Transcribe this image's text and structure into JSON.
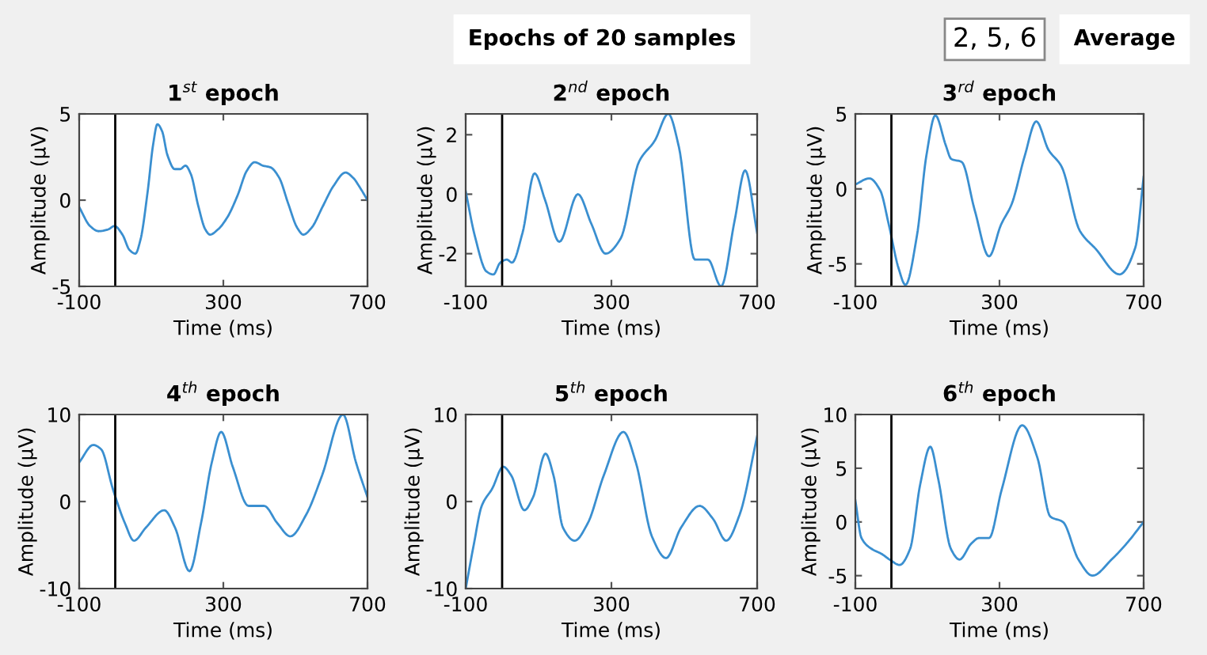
{
  "chart_data": [
    {
      "type": "line",
      "title": "1$^{st}$ epoch",
      "xlabel": "Time (ms)",
      "ylabel": "Amplitude (µV)",
      "xlim": [
        -100,
        700
      ],
      "ylim": [
        -5,
        5
      ],
      "xticks": [
        -100,
        300,
        700
      ],
      "yticks": [
        -5,
        0,
        5
      ],
      "ref_lines": [
        {
          "axis": "x",
          "value": 0,
          "color": "#000000"
        }
      ],
      "x": [
        -100,
        -70,
        -46,
        -20,
        -2,
        20,
        40,
        56,
        70,
        90,
        105,
        117,
        130,
        145,
        165,
        180,
        195,
        210,
        230,
        250,
        263,
        285,
        311,
        340,
        365,
        387,
        410,
        431,
        455,
        480,
        505,
        522,
        545,
        575,
        605,
        639,
        660,
        680,
        700
      ],
      "series": [
        {
          "color": "#3a8fd0",
          "values": [
            -0.4,
            -1.5,
            -1.8,
            -1.7,
            -1.5,
            -2.0,
            -2.9,
            -3.1,
            -2.3,
            0.5,
            3.2,
            4.4,
            4.0,
            2.6,
            1.8,
            1.8,
            2.0,
            1.5,
            -0.3,
            -1.7,
            -2.0,
            -1.7,
            -1.0,
            0.3,
            1.7,
            2.2,
            2.0,
            1.9,
            1.3,
            -0.2,
            -1.6,
            -2.0,
            -1.6,
            -0.4,
            0.8,
            1.6,
            1.3,
            0.7,
            0.0
          ]
        }
      ]
    },
    {
      "type": "line",
      "title": "2$^{nd}$ epoch",
      "xlabel": "Time (ms)",
      "ylabel": "Amplitude (µV)",
      "xlim": [
        -100,
        700
      ],
      "ylim": [
        -3.1,
        2.7
      ],
      "xticks": [
        -100,
        300,
        700
      ],
      "yticks": [
        -2,
        0,
        2
      ],
      "ref_lines": [
        {
          "axis": "x",
          "value": 0,
          "color": "#000000"
        }
      ],
      "x": [
        -100,
        -75,
        -43,
        -24,
        -5,
        13,
        27,
        56,
        89,
        118,
        157,
        208,
        245,
        284,
        325,
        376,
        419,
        456,
        485,
        529,
        565,
        601,
        638,
        667,
        700
      ],
      "series": [
        {
          "color": "#3a8fd0",
          "values": [
            0.1,
            -1.4,
            -2.6,
            -2.7,
            -2.3,
            -2.2,
            -2.3,
            -1.3,
            0.7,
            -0.2,
            -1.6,
            0.0,
            -1.0,
            -2.0,
            -1.5,
            1.1,
            1.8,
            2.7,
            1.6,
            -2.2,
            -2.2,
            -3.1,
            -0.9,
            0.8,
            -1.3
          ]
        }
      ]
    },
    {
      "type": "line",
      "title": "3$^{rd}$ epoch",
      "xlabel": "Time (ms)",
      "ylabel": "Amplitude (µV)",
      "xlim": [
        -100,
        700
      ],
      "ylim": [
        -6.5,
        5
      ],
      "xticks": [
        -100,
        300,
        700
      ],
      "yticks": [
        -5,
        0,
        5
      ],
      "ref_lines": [
        {
          "axis": "x",
          "value": 0,
          "color": "#000000"
        }
      ],
      "x": [
        -100,
        -61,
        -31,
        -7,
        20,
        39,
        71,
        97,
        122,
        151,
        166,
        195,
        231,
        271,
        304,
        334,
        370,
        402,
        436,
        472,
        523,
        567,
        633,
        677,
        700
      ],
      "series": [
        {
          "color": "#3a8fd0",
          "values": [
            0.3,
            0.7,
            -0.1,
            -2.4,
            -5.3,
            -6.4,
            -3.1,
            2.2,
            4.9,
            2.9,
            2.0,
            1.8,
            -1.4,
            -4.5,
            -2.4,
            -1.0,
            2.2,
            4.5,
            2.6,
            1.5,
            -2.8,
            -4.0,
            -5.7,
            -3.9,
            0.8
          ]
        }
      ]
    },
    {
      "type": "line",
      "title": "4$^{th}$ epoch",
      "xlabel": "Time (ms)",
      "ylabel": "Amplitude (µV)",
      "xlim": [
        -100,
        700
      ],
      "ylim": [
        -10,
        10
      ],
      "xticks": [
        -100,
        300,
        700
      ],
      "yticks": [
        -10,
        0,
        10
      ],
      "ref_lines": [
        {
          "axis": "x",
          "value": 0,
          "color": "#000000"
        }
      ],
      "x": [
        -100,
        -61,
        -39,
        -7,
        27,
        52,
        85,
        136,
        166,
        206,
        238,
        268,
        294,
        326,
        370,
        413,
        450,
        486,
        530,
        574,
        632,
        668,
        700
      ],
      "series": [
        {
          "color": "#3a8fd0",
          "values": [
            4.5,
            6.5,
            6,
            1.5,
            -2.5,
            -4.5,
            -3,
            -1,
            -3,
            -8,
            -2.5,
            4.5,
            8,
            4,
            -0.5,
            -0.5,
            -2.5,
            -4,
            -1.5,
            3,
            10,
            4.5,
            0.5
          ]
        }
      ]
    },
    {
      "type": "line",
      "title": "5$^{th}$ epoch",
      "xlabel": "Time (ms)",
      "ylabel": "Amplitude (µV)",
      "xlim": [
        -100,
        700
      ],
      "ylim": [
        -10,
        10
      ],
      "xticks": [
        -100,
        300,
        700
      ],
      "yticks": [
        -10,
        0,
        10
      ],
      "ref_lines": [
        {
          "axis": "x",
          "value": 0,
          "color": "#000000"
        }
      ],
      "x": [
        -100,
        -78,
        -56,
        -27,
        3,
        25,
        61,
        85,
        119,
        141,
        167,
        199,
        235,
        279,
        333,
        367,
        411,
        450,
        491,
        542,
        579,
        615,
        652,
        700
      ],
      "series": [
        {
          "color": "#3a8fd0",
          "values": [
            -10,
            -5,
            -0.5,
            1.5,
            4,
            3,
            -1,
            0.5,
            5.5,
            3,
            -3,
            -4.5,
            -2.5,
            3,
            8,
            4.5,
            -4,
            -6.5,
            -3,
            -0.5,
            -2,
            -4.5,
            -1.5,
            7.5
          ]
        }
      ]
    },
    {
      "type": "line",
      "title": "6$^{th}$ epoch",
      "xlabel": "Time (ms)",
      "ylabel": "Amplitude (µV)",
      "xlim": [
        -100,
        700
      ],
      "ylim": [
        -6.2,
        10
      ],
      "xticks": [
        -100,
        300,
        700
      ],
      "yticks": [
        -5,
        0,
        5,
        10
      ],
      "ref_lines": [
        {
          "axis": "x",
          "value": 0,
          "color": "#000000"
        }
      ],
      "x": [
        -100,
        -83,
        -55,
        -26,
        -5,
        23,
        52,
        80,
        108,
        130,
        165,
        189,
        222,
        243,
        271,
        306,
        363,
        405,
        441,
        476,
        519,
        558,
        611,
        653,
        700
      ],
      "series": [
        {
          "color": "#3a8fd0",
          "values": [
            2,
            -1.5,
            -2.5,
            -3,
            -3.5,
            -4,
            -2.5,
            3.5,
            7,
            4,
            -2.5,
            -3.5,
            -2,
            -1.5,
            -1.5,
            3,
            9,
            6,
            0.5,
            0,
            -3.5,
            -5,
            -3.5,
            -2,
            0
          ]
        }
      ]
    },
    {
      "type": "other",
      "annotations": [
        "Epochs of 20 samples",
        "2, 5, 6",
        "Average"
      ]
    }
  ]
}
